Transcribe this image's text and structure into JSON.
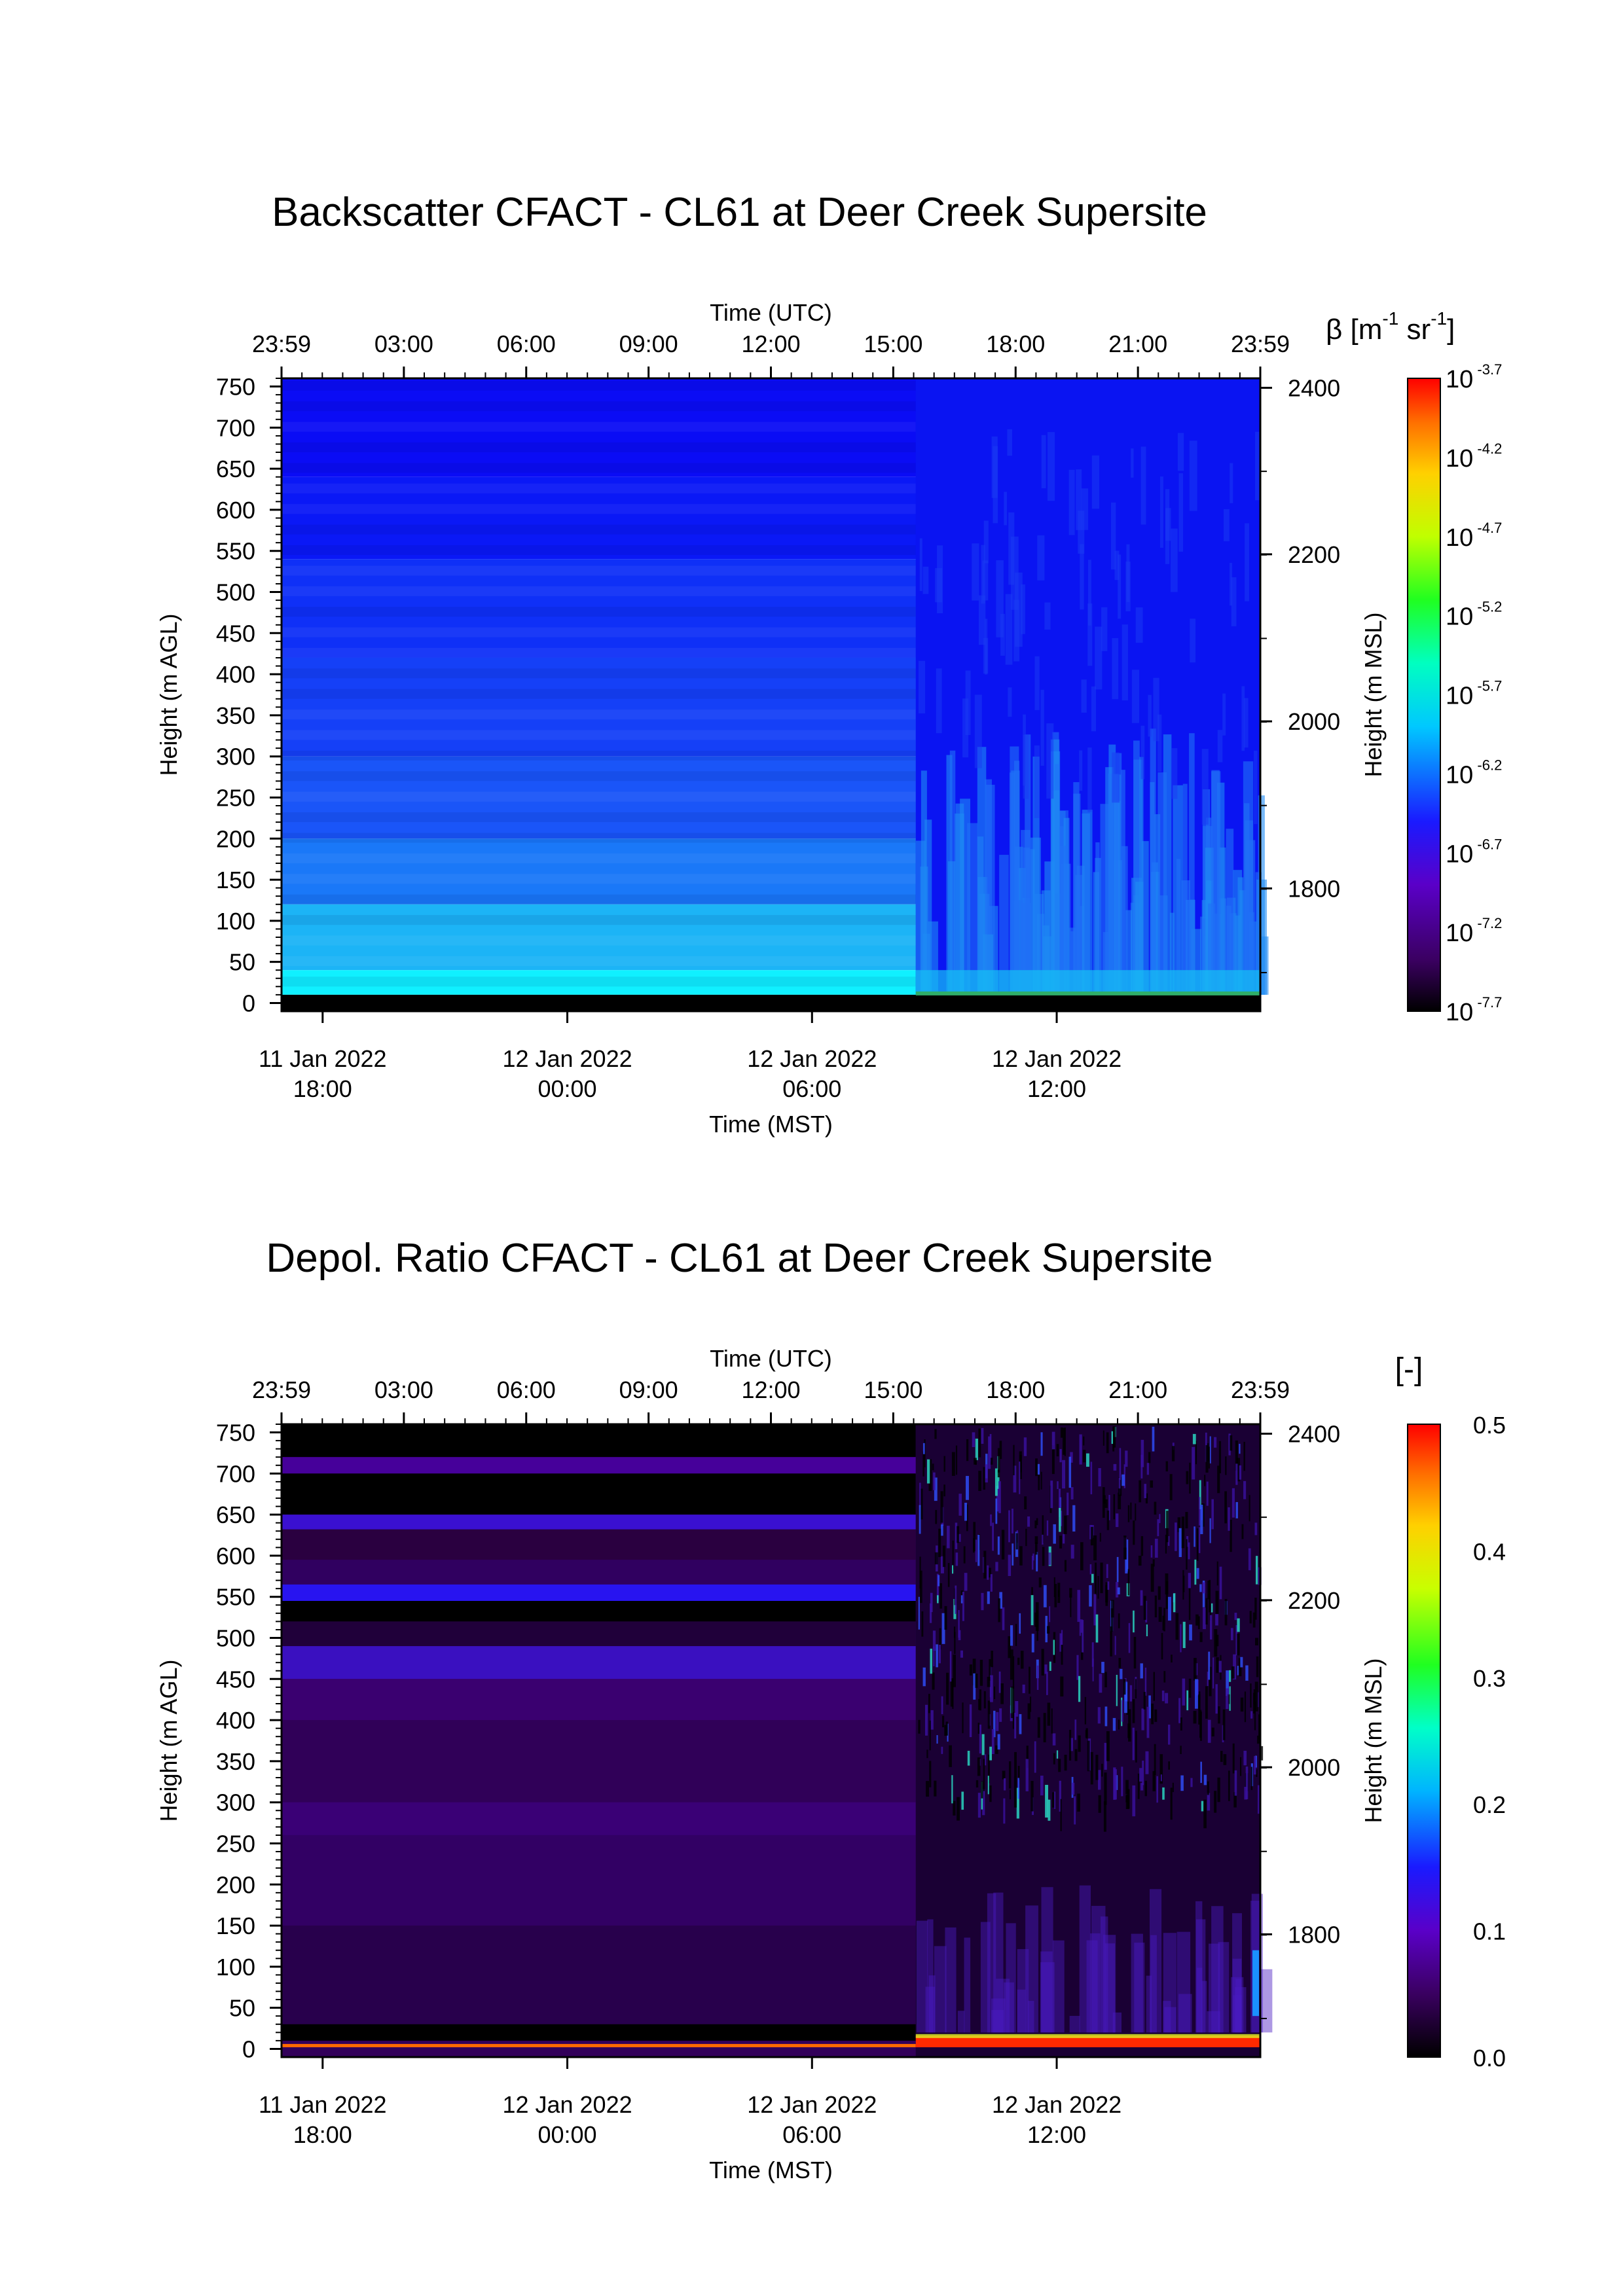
{
  "figure": {
    "chart_data": [
      {
        "type": "heatmap",
        "title": "Backscatter CFACT - CL61 at Deer Creek Supersite",
        "top_axis": {
          "label": "Time (UTC)",
          "ticks": [
            "23:59",
            "03:00",
            "06:00",
            "09:00",
            "12:00",
            "15:00",
            "18:00",
            "21:00",
            "23:59"
          ]
        },
        "bottom_axis": {
          "label": "Time (MST)",
          "ticks": [
            [
              "11 Jan 2022",
              "18:00"
            ],
            [
              "12 Jan 2022",
              "00:00"
            ],
            [
              "12 Jan 2022",
              "06:00"
            ],
            [
              "12 Jan 2022",
              "12:00"
            ]
          ]
        },
        "y_left": {
          "label": "Height (m AGL)",
          "range": [
            -10,
            760
          ],
          "ticks": [
            0,
            50,
            100,
            150,
            200,
            250,
            300,
            350,
            400,
            450,
            500,
            550,
            600,
            650,
            700,
            750
          ]
        },
        "y_right": {
          "label": "Height (m MSL)",
          "ticks": [
            1800,
            2000,
            2200,
            2400
          ]
        },
        "colorbar": {
          "label_prefix": "β [m",
          "label_exp1": "-1",
          "label_mid": " sr",
          "label_exp2": "-1",
          "label_suffix": "]",
          "scale": "log",
          "base": "10",
          "exponents": [
            "-3.7",
            "-4.2",
            "-4.7",
            "-5.2",
            "-5.7",
            "-6.2",
            "-6.7",
            "-7.2",
            "-7.7"
          ]
        },
        "colors": {
          "upper": "#0a0cf5",
          "mid": "#1a55f8",
          "lower": "#1cb4f6",
          "near_ground": "#10f0ff",
          "ground": "#000000"
        }
      },
      {
        "type": "heatmap",
        "title": "Depol. Ratio CFACT - CL61 at Deer Creek Supersite",
        "top_axis": {
          "label": "Time (UTC)",
          "ticks": [
            "23:59",
            "03:00",
            "06:00",
            "09:00",
            "12:00",
            "15:00",
            "18:00",
            "21:00",
            "23:59"
          ]
        },
        "bottom_axis": {
          "label": "Time (MST)",
          "ticks": [
            [
              "11 Jan 2022",
              "18:00"
            ],
            [
              "12 Jan 2022",
              "00:00"
            ],
            [
              "12 Jan 2022",
              "06:00"
            ],
            [
              "12 Jan 2022",
              "12:00"
            ]
          ]
        },
        "y_left": {
          "label": "Height (m AGL)",
          "range": [
            -10,
            760
          ],
          "ticks": [
            0,
            50,
            100,
            150,
            200,
            250,
            300,
            350,
            400,
            450,
            500,
            550,
            600,
            650,
            700,
            750
          ]
        },
        "y_right": {
          "label": "Height (m MSL)",
          "ticks": [
            1800,
            2000,
            2200,
            2400
          ]
        },
        "colorbar": {
          "label": "[-]",
          "scale": "linear",
          "range": [
            0.0,
            0.5
          ],
          "ticks": [
            "0.5",
            "0.4",
            "0.3",
            "0.2",
            "0.1",
            "0.0"
          ]
        },
        "colors": {
          "background": "#000000",
          "dark_purple": "#32005a",
          "purple": "#46009a",
          "blue_band": "#2814f0",
          "surface": "#ff2a00"
        }
      }
    ]
  }
}
